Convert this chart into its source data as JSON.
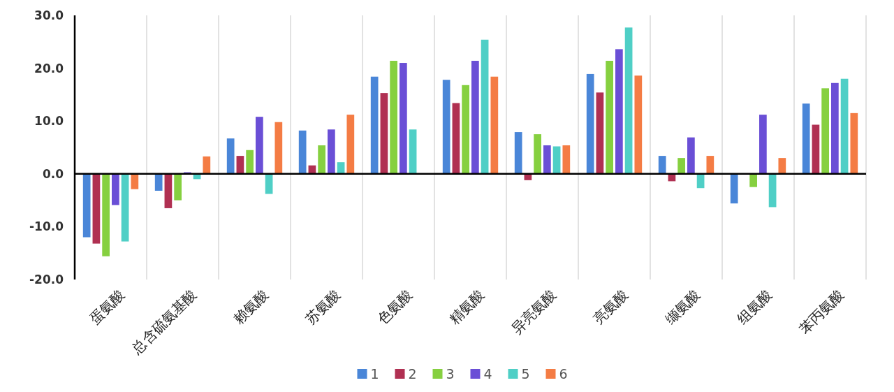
{
  "chart_data": {
    "type": "bar",
    "categories": [
      "蛋氨酸",
      "总含硫氨基酸",
      "赖氨酸",
      "苏氨酸",
      "色氨酸",
      "精氨酸",
      "异亮氨酸",
      "亮氨酸",
      "缬氨酸",
      "组氨酸",
      "苯丙氨酸"
    ],
    "series": [
      {
        "name": "1",
        "color": "#4a86d8",
        "values": [
          -12.0,
          -3.2,
          6.7,
          8.2,
          18.4,
          17.8,
          7.9,
          18.9,
          3.4,
          -5.6,
          13.3
        ]
      },
      {
        "name": "2",
        "color": "#b03052",
        "values": [
          -13.2,
          -6.5,
          3.4,
          1.6,
          15.3,
          13.4,
          -1.2,
          15.4,
          -1.4,
          null,
          9.3
        ]
      },
      {
        "name": "3",
        "color": "#86d040",
        "values": [
          -15.6,
          -5.0,
          4.5,
          5.4,
          21.4,
          16.8,
          7.5,
          21.4,
          3.0,
          -2.5,
          16.2
        ]
      },
      {
        "name": "4",
        "color": "#6a4fd6",
        "values": [
          -5.9,
          0.3,
          10.8,
          8.4,
          21.0,
          21.4,
          5.4,
          23.6,
          6.9,
          11.2,
          17.2
        ]
      },
      {
        "name": "5",
        "color": "#4fcfc6",
        "values": [
          -12.8,
          -1.0,
          -3.8,
          2.2,
          8.4,
          25.4,
          5.2,
          27.7,
          -2.7,
          -6.3,
          18.0
        ]
      },
      {
        "name": "6",
        "color": "#f47c44",
        "values": [
          -2.9,
          3.3,
          9.8,
          11.2,
          null,
          18.4,
          5.4,
          18.6,
          3.4,
          3.0,
          11.5
        ]
      }
    ],
    "ylim": [
      -20,
      30
    ],
    "yticks": [
      {
        "value": -20,
        "label": "-20.0"
      },
      {
        "value": -10,
        "label": "-10.0"
      },
      {
        "value": 0,
        "label": "0.0"
      },
      {
        "value": 10,
        "label": "10.0"
      },
      {
        "value": 20,
        "label": "20.0"
      },
      {
        "value": 30,
        "label": "30.0"
      }
    ],
    "grid": "x",
    "legend": "bottom"
  }
}
